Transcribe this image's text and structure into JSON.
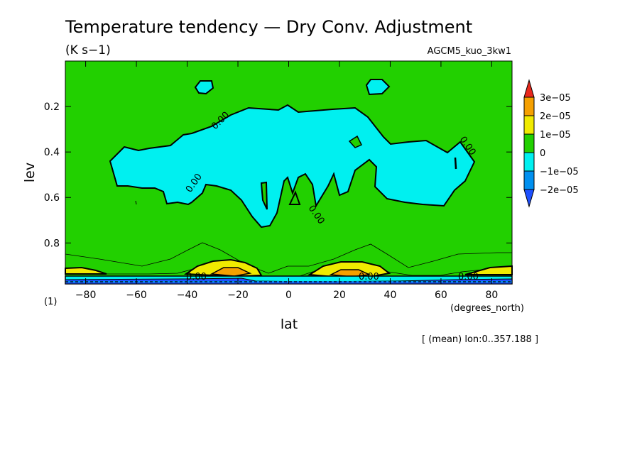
{
  "chart_data": {
    "type": "contour",
    "title": "Temperature tendency — Dry Conv. Adjustment",
    "units": "(K s−1)",
    "dataset": "AGCM5_kuo_3kw1",
    "xlabel": "lat",
    "x_units": "(degrees_north)",
    "ylabel": "lev",
    "y_units": "(1)",
    "xlim": [
      -88,
      88
    ],
    "ylim": [
      0.0,
      0.98
    ],
    "y_inverted": true,
    "x_ticks": [
      {
        "value": -80,
        "label": "−80"
      },
      {
        "value": -60,
        "label": "−60"
      },
      {
        "value": -40,
        "label": "−40"
      },
      {
        "value": -20,
        "label": "−20"
      },
      {
        "value": 0,
        "label": "0"
      },
      {
        "value": 20,
        "label": "20"
      },
      {
        "value": 40,
        "label": "40"
      },
      {
        "value": 60,
        "label": "60"
      },
      {
        "value": 80,
        "label": "80"
      }
    ],
    "y_ticks": [
      {
        "value": 0.2,
        "label": "0.2"
      },
      {
        "value": 0.4,
        "label": "0.4"
      },
      {
        "value": 0.6,
        "label": "0.6"
      },
      {
        "value": 0.8,
        "label": "0.8"
      }
    ],
    "colorbar": {
      "levels": [
        {
          "label": "3e−05",
          "color": "#e8281c"
        },
        {
          "label": "2e−05",
          "color": "#f5a000"
        },
        {
          "label": "1e−05",
          "color": "#f0ea00"
        },
        {
          "label": "0",
          "color": "#22d000"
        },
        {
          "label": "−1e−05",
          "color": "#00f0f0"
        },
        {
          "label": "−2e−05",
          "color": "#0090f0"
        }
      ],
      "low_extend_color": "#1e50ff"
    },
    "contour_labels": [
      "0.00",
      "0.00",
      "0.00",
      "0.00",
      "0.00",
      "0.00",
      "0.00"
    ],
    "note": "[ (mean) lon:0..357.188 ]"
  }
}
